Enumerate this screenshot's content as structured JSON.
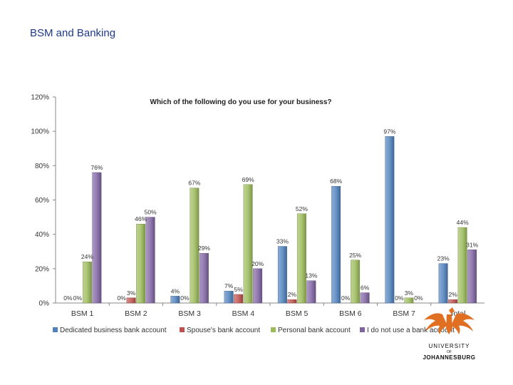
{
  "slide": {
    "title": "BSM and Banking"
  },
  "chart_data": {
    "type": "bar",
    "title": "Which of the following do you use for your business?",
    "categories": [
      "BSM 1",
      "BSM 2",
      "BSM 3",
      "BSM 4",
      "BSM 5",
      "BSM 6",
      "BSM 7",
      "Total"
    ],
    "ylim": [
      0,
      120
    ],
    "yticks": [
      "0%",
      "20%",
      "40%",
      "60%",
      "80%",
      "100%",
      "120%"
    ],
    "legend_position": "bottom",
    "grid": false,
    "series": [
      {
        "name": "Dedicated business bank account",
        "color": "#4f81bd",
        "values": [
          0,
          0,
          4,
          7,
          33,
          68,
          97,
          23
        ]
      },
      {
        "name": "Spouse's bank account",
        "color": "#c0504d",
        "values": [
          0,
          3,
          0,
          5,
          2,
          0,
          0,
          2
        ]
      },
      {
        "name": "Personal bank account",
        "color": "#9bbb59",
        "values": [
          24,
          46,
          67,
          69,
          52,
          25,
          3,
          44
        ]
      },
      {
        "name": "I do not use a bank account",
        "color": "#8064a2",
        "values": [
          76,
          50,
          29,
          20,
          13,
          6,
          0,
          31
        ]
      }
    ]
  },
  "logo": {
    "line1": "UNIVERSITY",
    "line2": "OF",
    "line3": "JOHANNESBURG",
    "accent": "#e06f22"
  }
}
